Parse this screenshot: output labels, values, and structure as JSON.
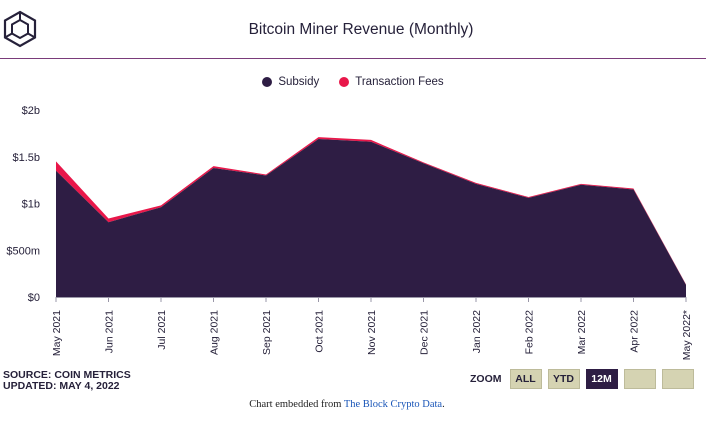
{
  "header": {
    "title": "Bitcoin Miner Revenue (Monthly)",
    "logo_icon": "cube-logo-icon"
  },
  "colors": {
    "subsidy": "#2e1d44",
    "fees": "#e8174a",
    "accent_line": "#7a3b7a"
  },
  "chart_data": {
    "type": "area",
    "stacked": true,
    "title": "Bitcoin Miner Revenue (Monthly)",
    "categories": [
      "May 2021",
      "Jun 2021",
      "Jul 2021",
      "Aug 2021",
      "Sep 2021",
      "Oct 2021",
      "Nov 2021",
      "Dec 2021",
      "Jan 2022",
      "Feb 2022",
      "Mar 2022",
      "Apr 2022",
      "May 2022*"
    ],
    "series": [
      {
        "name": "Subsidy",
        "color": "#2e1d44",
        "values": [
          1.35,
          0.8,
          0.96,
          1.38,
          1.3,
          1.69,
          1.66,
          1.43,
          1.21,
          1.06,
          1.2,
          1.15,
          0.13
        ]
      },
      {
        "name": "Transaction Fees",
        "color": "#e8174a",
        "values": [
          0.1,
          0.04,
          0.02,
          0.02,
          0.01,
          0.02,
          0.02,
          0.01,
          0.01,
          0.01,
          0.01,
          0.01,
          0.005
        ]
      }
    ],
    "y_ticks": [
      {
        "value": 0,
        "label": "$0"
      },
      {
        "value": 0.5,
        "label": "$500m"
      },
      {
        "value": 1,
        "label": "$1b"
      },
      {
        "value": 1.5,
        "label": "$1.5b"
      },
      {
        "value": 2,
        "label": "$2b"
      }
    ],
    "ylim": [
      0,
      2
    ],
    "grid": false,
    "legend_position": "top-center"
  },
  "footer": {
    "source_line1": "SOURCE: COIN METRICS",
    "source_line2": "UPDATED: MAY 4, 2022",
    "zoom_label": "ZOOM",
    "zoom_buttons": [
      "ALL",
      "YTD",
      "12M",
      "",
      ""
    ],
    "zoom_active": "12M",
    "embed_prefix": "Chart embedded from ",
    "embed_link": "The Block Crypto Data",
    "embed_suffix": "."
  }
}
